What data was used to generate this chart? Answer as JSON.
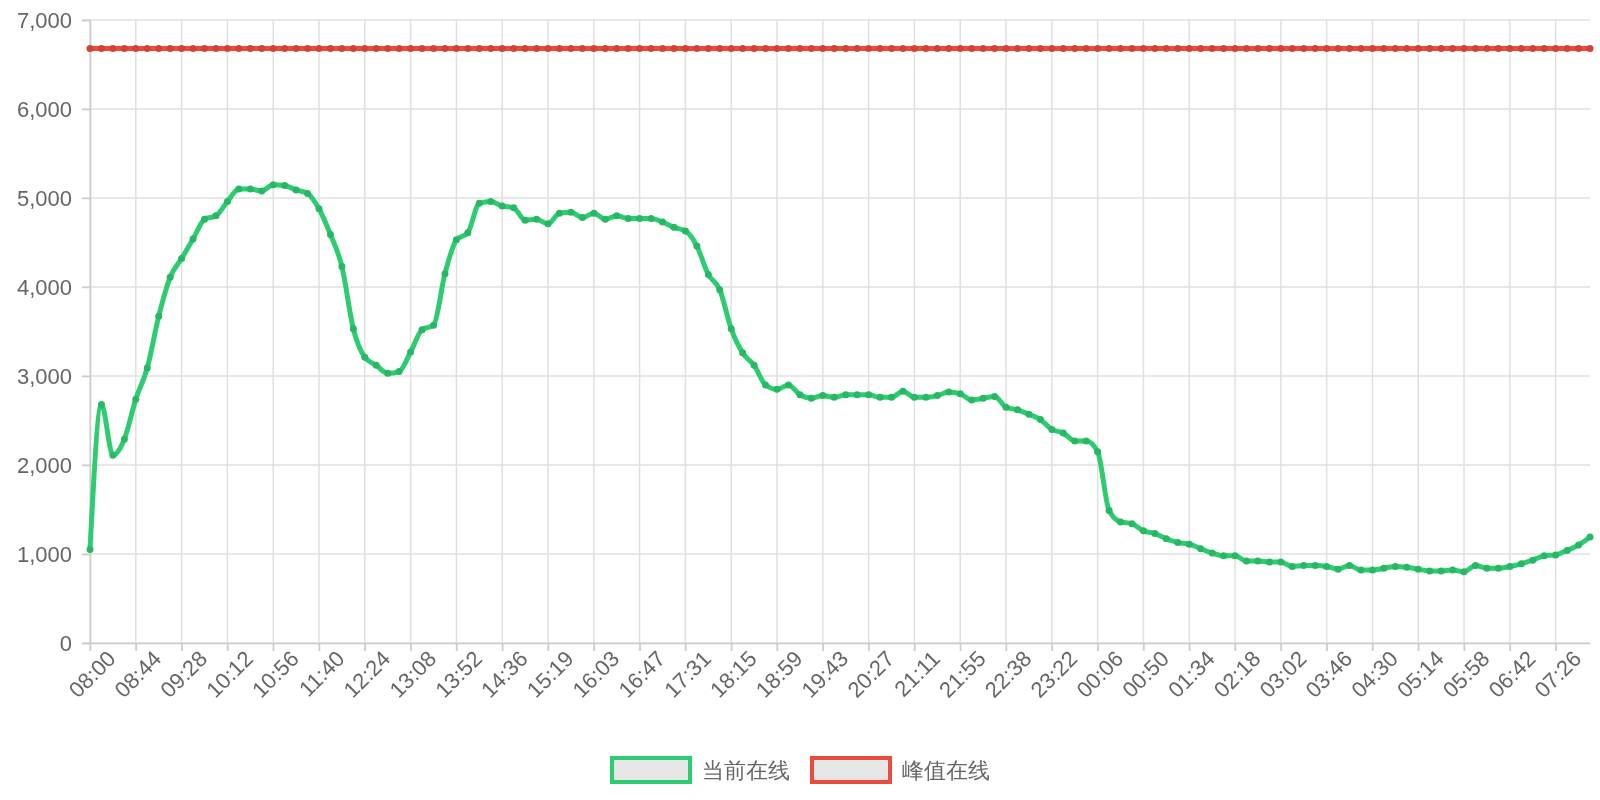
{
  "chart_data": {
    "type": "line",
    "categories": [
      "08:00",
      null,
      null,
      null,
      "08:44",
      null,
      null,
      null,
      "09:28",
      null,
      null,
      null,
      "10:12",
      null,
      null,
      null,
      "10:56",
      null,
      null,
      null,
      "11:40",
      null,
      null,
      null,
      "12:24",
      null,
      null,
      null,
      "13:08",
      null,
      null,
      null,
      "13:52",
      null,
      null,
      null,
      "14:36",
      null,
      null,
      null,
      "15:19",
      null,
      null,
      null,
      "16:03",
      null,
      null,
      null,
      "16:47",
      null,
      null,
      null,
      "17:31",
      null,
      null,
      null,
      "18:15",
      null,
      null,
      null,
      "18:59",
      null,
      null,
      null,
      "19:43",
      null,
      null,
      null,
      "20:27",
      null,
      null,
      null,
      "21:11",
      null,
      null,
      null,
      "21:55",
      null,
      null,
      null,
      "22:38",
      null,
      null,
      null,
      "23:22",
      null,
      null,
      null,
      "00:06",
      null,
      null,
      null,
      "00:50",
      null,
      null,
      null,
      "01:34",
      null,
      null,
      null,
      "02:18",
      null,
      null,
      null,
      "03:02",
      null,
      null,
      null,
      "03:46",
      null,
      null,
      null,
      "04:30",
      null,
      null,
      null,
      "05:14",
      null,
      null,
      null,
      "05:58",
      null,
      null,
      null,
      "06:42",
      null,
      null,
      null,
      "07:26",
      null,
      null,
      null
    ],
    "series": [
      {
        "name": "当前在线",
        "color": "#2ecc71",
        "values": [
          1050,
          2680,
          2110,
          2290,
          2740,
          3090,
          3670,
          4110,
          4320,
          4540,
          4760,
          4800,
          4960,
          5100,
          5100,
          5080,
          5150,
          5140,
          5090,
          5050,
          4880,
          4590,
          4230,
          3530,
          3210,
          3120,
          3030,
          3050,
          3270,
          3520,
          3570,
          4150,
          4530,
          4610,
          4940,
          4960,
          4910,
          4890,
          4750,
          4760,
          4710,
          4830,
          4840,
          4780,
          4830,
          4760,
          4800,
          4770,
          4770,
          4770,
          4730,
          4670,
          4630,
          4460,
          4140,
          3970,
          3530,
          3260,
          3120,
          2900,
          2850,
          2900,
          2790,
          2750,
          2780,
          2760,
          2790,
          2790,
          2790,
          2760,
          2760,
          2830,
          2760,
          2760,
          2780,
          2820,
          2800,
          2730,
          2750,
          2770,
          2650,
          2620,
          2570,
          2510,
          2400,
          2360,
          2270,
          2270,
          2150,
          1490,
          1360,
          1340,
          1260,
          1230,
          1170,
          1130,
          1110,
          1060,
          1010,
          980,
          980,
          920,
          920,
          910,
          910,
          860,
          870,
          870,
          860,
          830,
          870,
          820,
          820,
          840,
          860,
          850,
          830,
          810,
          810,
          820,
          800,
          870,
          840,
          840,
          860,
          890,
          930,
          980,
          990,
          1040,
          1100,
          1190
        ]
      },
      {
        "name": "峰值在线",
        "color": "#e74c3c",
        "values": [
          6680,
          6680,
          6680,
          6680,
          6680,
          6680,
          6680,
          6680,
          6680,
          6680,
          6680,
          6680,
          6680,
          6680,
          6680,
          6680,
          6680,
          6680,
          6680,
          6680,
          6680,
          6680,
          6680,
          6680,
          6680,
          6680,
          6680,
          6680,
          6680,
          6680,
          6680,
          6680,
          6680,
          6680,
          6680,
          6680,
          6680,
          6680,
          6680,
          6680,
          6680,
          6680,
          6680,
          6680,
          6680,
          6680,
          6680,
          6680,
          6680,
          6680,
          6680,
          6680,
          6680,
          6680,
          6680,
          6680,
          6680,
          6680,
          6680,
          6680,
          6680,
          6680,
          6680,
          6680,
          6680,
          6680,
          6680,
          6680,
          6680,
          6680,
          6680,
          6680,
          6680,
          6680,
          6680,
          6680,
          6680,
          6680,
          6680,
          6680,
          6680,
          6680,
          6680,
          6680,
          6680,
          6680,
          6680,
          6680,
          6680,
          6680,
          6680,
          6680,
          6680,
          6680,
          6680,
          6680,
          6680,
          6680,
          6680,
          6680,
          6680,
          6680,
          6680,
          6680,
          6680,
          6680,
          6680,
          6680,
          6680,
          6680,
          6680,
          6680,
          6680,
          6680,
          6680,
          6680,
          6680,
          6680,
          6680,
          6680,
          6680,
          6680,
          6680,
          6680,
          6680,
          6680,
          6680,
          6680,
          6680,
          6680,
          6680,
          6680
        ]
      }
    ],
    "ylim": [
      0,
      7000
    ],
    "yticks": [
      0,
      {
        "value": 1000,
        "label": "1,000"
      },
      {
        "value": 2000,
        "label": "2,000"
      },
      {
        "value": 3000,
        "label": "3,000"
      },
      {
        "value": 4000,
        "label": "4,000"
      },
      {
        "value": 5000,
        "label": "5,000"
      },
      {
        "value": 6000,
        "label": "6,000"
      },
      {
        "value": 7000,
        "label": "7,000"
      }
    ],
    "grid": true,
    "legend": "bottom",
    "marker": "circle",
    "line_style": "solid"
  }
}
